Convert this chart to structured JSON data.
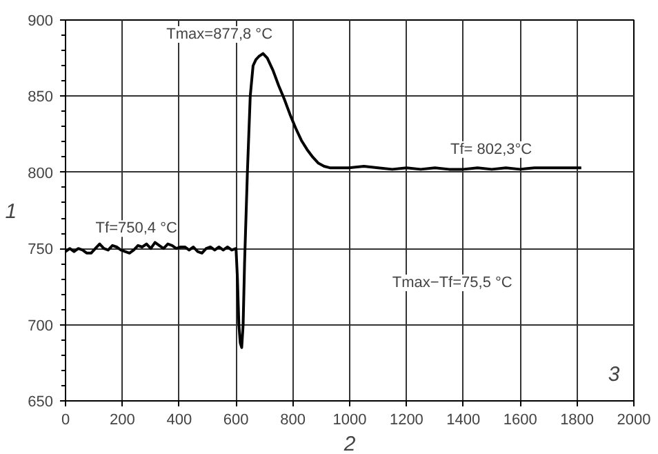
{
  "chart_data": {
    "type": "line",
    "xlabel": "2",
    "ylabel": "1",
    "x": [
      0,
      15,
      30,
      45,
      60,
      75,
      90,
      105,
      120,
      135,
      150,
      165,
      180,
      195,
      210,
      225,
      240,
      255,
      270,
      285,
      300,
      315,
      330,
      345,
      360,
      375,
      390,
      405,
      420,
      435,
      450,
      465,
      480,
      495,
      510,
      525,
      540,
      555,
      570,
      585,
      600,
      605,
      610,
      615,
      620,
      625,
      630,
      640,
      650,
      660,
      670,
      680,
      695,
      710,
      730,
      750,
      770,
      790,
      810,
      830,
      850,
      870,
      890,
      910,
      930,
      950,
      975,
      1000,
      1050,
      1100,
      1150,
      1200,
      1250,
      1300,
      1350,
      1400,
      1450,
      1500,
      1550,
      1600,
      1650,
      1700,
      1750,
      1800,
      1815
    ],
    "series": [
      {
        "color": "#000000",
        "values": [
          748,
          750,
          748,
          750,
          749,
          747,
          747,
          750,
          753,
          750,
          749,
          752,
          751,
          749,
          748,
          747,
          749,
          752,
          751,
          753,
          750,
          754,
          752,
          750,
          753,
          752,
          750,
          751,
          751,
          749,
          751,
          748,
          747,
          750,
          751,
          749,
          751,
          749,
          751,
          749,
          750,
          730,
          700,
          688,
          685,
          700,
          740,
          800,
          850,
          870,
          874,
          876,
          878,
          875,
          867,
          857,
          848,
          838,
          829,
          821,
          815,
          810,
          806,
          804,
          803,
          803,
          803,
          803,
          804,
          803,
          802,
          803,
          802,
          803,
          802,
          802,
          803,
          802,
          803,
          802,
          803,
          803,
          803,
          803,
          803
        ]
      }
    ],
    "xlim": [
      0,
      2000
    ],
    "ylim": [
      650,
      900
    ],
    "xticks": [
      0,
      200,
      400,
      600,
      800,
      1000,
      1200,
      1400,
      1600,
      1800,
      2000
    ],
    "yticks": [
      650,
      700,
      750,
      800,
      850,
      900
    ],
    "grid": true,
    "line_style": "solid",
    "annotations": [
      {
        "text": "Tmax=877,8 °C",
        "x": 695,
        "y": 877.8
      },
      {
        "text": "Tf=750,4 °C",
        "x": 300,
        "y": 750.4
      },
      {
        "text": "Tf= 802,3°C",
        "x": 1500,
        "y": 802.3
      },
      "Tmax−Tf=75,5 °C",
      "3"
    ]
  }
}
